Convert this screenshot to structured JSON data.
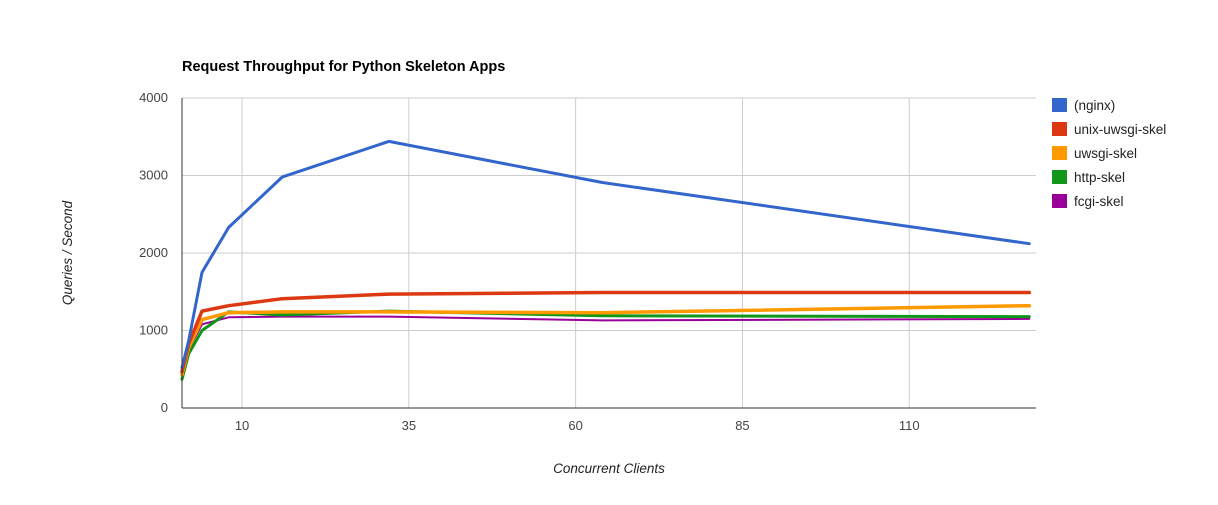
{
  "chart_data": {
    "type": "line",
    "title": "Request Throughput for Python Skeleton Apps",
    "xlabel": "Concurrent Clients",
    "ylabel": "Queries / Second",
    "xlim": [
      1,
      129
    ],
    "ylim": [
      0,
      4000
    ],
    "x_ticks": [
      10,
      35,
      60,
      85,
      110
    ],
    "y_ticks": [
      0,
      1000,
      2000,
      3000,
      4000
    ],
    "grid": true,
    "legend_position": "right",
    "x": [
      1,
      2,
      4,
      8,
      16,
      32,
      64,
      128
    ],
    "series": [
      {
        "name": "(nginx)",
        "color": "#3366cc",
        "values": [
          520,
          870,
          1750,
          2330,
          2980,
          3440,
          2910,
          2120
        ]
      },
      {
        "name": "unix-uwsgi-skel",
        "color": "#dc3912",
        "values": [
          470,
          830,
          1250,
          1320,
          1410,
          1470,
          1490,
          1490
        ]
      },
      {
        "name": "uwsgi-skel",
        "color": "#ff9900",
        "values": [
          430,
          780,
          1140,
          1230,
          1240,
          1240,
          1230,
          1320
        ]
      },
      {
        "name": "http-skel",
        "color": "#109618",
        "values": [
          370,
          700,
          1000,
          1240,
          1200,
          1250,
          1190,
          1180
        ]
      },
      {
        "name": "fcgi-skel",
        "color": "#990099",
        "values": [
          440,
          760,
          1080,
          1170,
          1180,
          1180,
          1130,
          1150
        ]
      }
    ]
  }
}
